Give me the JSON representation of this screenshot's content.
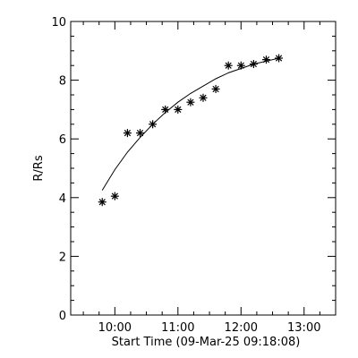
{
  "chart_data": {
    "type": "scatter",
    "xlabel": "Start Time (09-Mar-25 09:18:08)",
    "ylabel": "R/Rs",
    "xlim": [
      "09:18",
      "13:30"
    ],
    "ylim": [
      0,
      10
    ],
    "x_ticks": [
      "10:00",
      "11:00",
      "12:00",
      "13:00"
    ],
    "y_ticks": [
      0,
      2,
      4,
      6,
      8,
      10
    ],
    "grid": false,
    "series": [
      {
        "marker": "asterisk",
        "points": [
          {
            "x": "09:48",
            "y": 3.85
          },
          {
            "x": "10:00",
            "y": 4.05
          },
          {
            "x": "10:12",
            "y": 6.2
          },
          {
            "x": "10:24",
            "y": 6.2
          },
          {
            "x": "10:36",
            "y": 6.5
          },
          {
            "x": "10:48",
            "y": 7.0
          },
          {
            "x": "11:00",
            "y": 7.0
          },
          {
            "x": "11:12",
            "y": 7.25
          },
          {
            "x": "11:24",
            "y": 7.4
          },
          {
            "x": "11:36",
            "y": 7.7
          },
          {
            "x": "11:48",
            "y": 8.5
          },
          {
            "x": "12:00",
            "y": 8.5
          },
          {
            "x": "12:12",
            "y": 8.55
          },
          {
            "x": "12:24",
            "y": 8.7
          },
          {
            "x": "12:36",
            "y": 8.75
          }
        ]
      },
      {
        "style": "solid-line",
        "fit": true,
        "points": [
          {
            "x": "09:48",
            "y": 4.25
          },
          {
            "x": "10:00",
            "y": 4.95
          },
          {
            "x": "10:12",
            "y": 5.55
          },
          {
            "x": "10:24",
            "y": 6.05
          },
          {
            "x": "10:36",
            "y": 6.5
          },
          {
            "x": "10:48",
            "y": 6.9
          },
          {
            "x": "11:00",
            "y": 7.25
          },
          {
            "x": "11:12",
            "y": 7.55
          },
          {
            "x": "11:24",
            "y": 7.8
          },
          {
            "x": "11:36",
            "y": 8.05
          },
          {
            "x": "11:48",
            "y": 8.25
          },
          {
            "x": "12:00",
            "y": 8.4
          },
          {
            "x": "12:12",
            "y": 8.55
          },
          {
            "x": "12:24",
            "y": 8.65
          },
          {
            "x": "12:36",
            "y": 8.75
          }
        ]
      }
    ]
  }
}
